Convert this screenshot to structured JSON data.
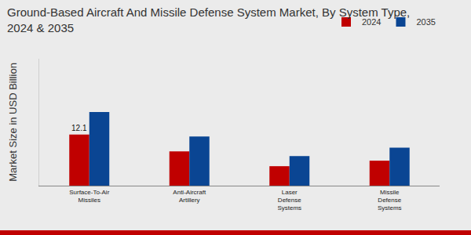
{
  "chart_data": {
    "type": "bar",
    "title": "Ground-Based Aircraft And Missile Defense System Market, By System Type,\n2024 & 2035",
    "y_label": "Market Size in USD Billion",
    "categories": [
      "Surface-To-Air\nMissiles",
      "Anti-Aircraft\nArtillery",
      "Laser\nDefense\nSystems",
      "Missile\nDefense\nSystems"
    ],
    "series": [
      {
        "name": "2024",
        "color": "#c00000",
        "values": [
          12.1,
          8.1,
          4.6,
          5.9
        ],
        "data_labels": true,
        "value_labels": [
          "12.1",
          null,
          null,
          null
        ]
      },
      {
        "name": "2035",
        "color": "#0a4593",
        "values": [
          17.4,
          11.6,
          7.0,
          9.0
        ]
      }
    ],
    "ylim": [
      0,
      30
    ],
    "yticks": [],
    "tick_labels": "x",
    "grid": false,
    "legend": "top right"
  }
}
